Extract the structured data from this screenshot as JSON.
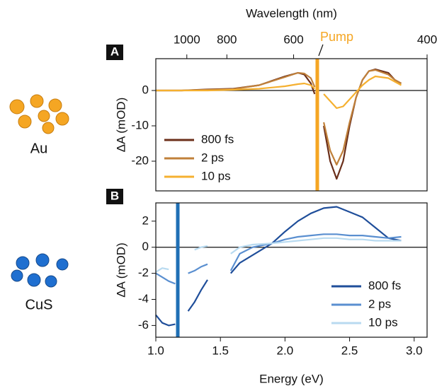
{
  "chart_data": [
    {
      "type": "line",
      "panel_label": "A",
      "sample_label": "Au",
      "x2label": "Wavelength (nm)",
      "x2ticks": [
        1000,
        800,
        600,
        400
      ],
      "ylabel": "ΔA (mOD)",
      "annotation": "Pump",
      "pump_energy": 2.25,
      "pump_color": "#f5a623",
      "xlim": [
        1.0,
        3.1
      ],
      "ylim": [
        -28.4,
        9
      ],
      "yticks": [
        -20,
        -10,
        0
      ],
      "zero_line": true,
      "legend": "lower left",
      "x": [
        1.0,
        1.2,
        1.4,
        1.6,
        1.8,
        2.0,
        2.1,
        2.15,
        2.2,
        2.23,
        2.26,
        2.3,
        2.35,
        2.4,
        2.45,
        2.5,
        2.55,
        2.6,
        2.65,
        2.7,
        2.8,
        2.85,
        2.9
      ],
      "series": [
        {
          "name": "800 fs",
          "color": "#6b2f1a",
          "values": [
            0,
            0,
            0.3,
            0.5,
            1.5,
            4,
            5,
            4.5,
            2,
            -1,
            null,
            -10,
            -20,
            -25,
            -20,
            -10,
            -2,
            3,
            5.5,
            6,
            5,
            3,
            2
          ]
        },
        {
          "name": "2 ps",
          "color": "#c0803a",
          "values": [
            0,
            0,
            0.2,
            0.4,
            1.5,
            3.8,
            5,
            4.8,
            3.5,
            1,
            null,
            -9,
            -17,
            -21,
            -17,
            -9,
            -2,
            3,
            5.5,
            5.8,
            4.5,
            3,
            2
          ]
        },
        {
          "name": "10 ps",
          "color": "#f5b030",
          "values": [
            0,
            0,
            0,
            0.2,
            0.5,
            1.2,
            1.8,
            2,
            1.5,
            0.5,
            null,
            -1,
            -3,
            -5,
            -4.5,
            -2.5,
            -0.5,
            1.5,
            3,
            4,
            3.5,
            2.5,
            1.5
          ]
        }
      ]
    },
    {
      "type": "line",
      "panel_label": "B",
      "sample_label": "CuS",
      "xlabel": "Energy (eV)",
      "xticks": [
        {
          "value": 1,
          "label": "1.0"
        },
        1.5,
        {
          "value": 2,
          "label": "2.0"
        },
        2.5,
        {
          "value": 3,
          "label": "3.0"
        }
      ],
      "ylabel": "ΔA (mOD)",
      "pump_energy": 1.17,
      "pump_color": "#1f6fb5",
      "xlim": [
        1.0,
        3.1
      ],
      "ylim": [
        -6.9,
        3.4
      ],
      "yticks": [
        -6,
        -4,
        -2,
        0,
        2
      ],
      "zero_line": true,
      "legend": "lower right",
      "x": [
        1.0,
        1.05,
        1.1,
        1.15,
        1.2,
        1.25,
        1.3,
        1.35,
        1.4,
        1.5,
        1.58,
        1.65,
        1.75,
        1.9,
        2.0,
        2.1,
        2.2,
        2.3,
        2.4,
        2.5,
        2.6,
        2.7,
        2.8,
        2.9
      ],
      "series": [
        {
          "name": "800 fs",
          "color": "#1f4e9a",
          "values": [
            -5.2,
            -5.8,
            -6,
            -5.9,
            null,
            -4.9,
            -4.2,
            -3.3,
            -2.5,
            null,
            -2,
            -1.2,
            -0.6,
            0.3,
            1.2,
            2,
            2.6,
            3,
            3.1,
            2.7,
            2.3,
            1.5,
            0.7,
            0.5
          ]
        },
        {
          "name": "2 ps",
          "color": "#5a8fd0",
          "values": [
            -2,
            -2.3,
            -2.6,
            -2.8,
            null,
            -2,
            -1.8,
            -1.5,
            -1.3,
            null,
            -1.8,
            -0.5,
            0,
            0.3,
            0.6,
            0.8,
            0.9,
            1,
            1,
            0.9,
            0.9,
            0.8,
            0.7,
            0.8
          ]
        },
        {
          "name": "10 ps",
          "color": "#b8daf0",
          "values": [
            -1.9,
            -1.6,
            -1.7,
            null,
            null,
            null,
            -0.2,
            0,
            0.1,
            null,
            -0.5,
            0,
            0.2,
            0.3,
            0.4,
            0.5,
            0.6,
            0.7,
            0.7,
            0.6,
            0.6,
            0.5,
            0.5,
            0.5
          ]
        }
      ]
    }
  ]
}
